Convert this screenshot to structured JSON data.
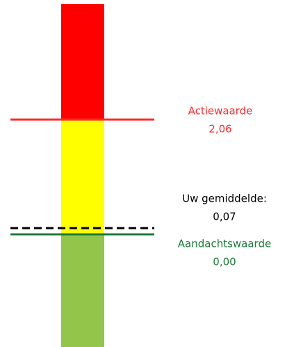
{
  "thresholds": [
    {
      "label": "Actiewaarde",
      "value": "2,06"
    },
    {
      "label": "Uw gemiddelde:",
      "value": "0,07"
    },
    {
      "label": "Aandachtswaarde",
      "value": "0,00"
    }
  ]
}
